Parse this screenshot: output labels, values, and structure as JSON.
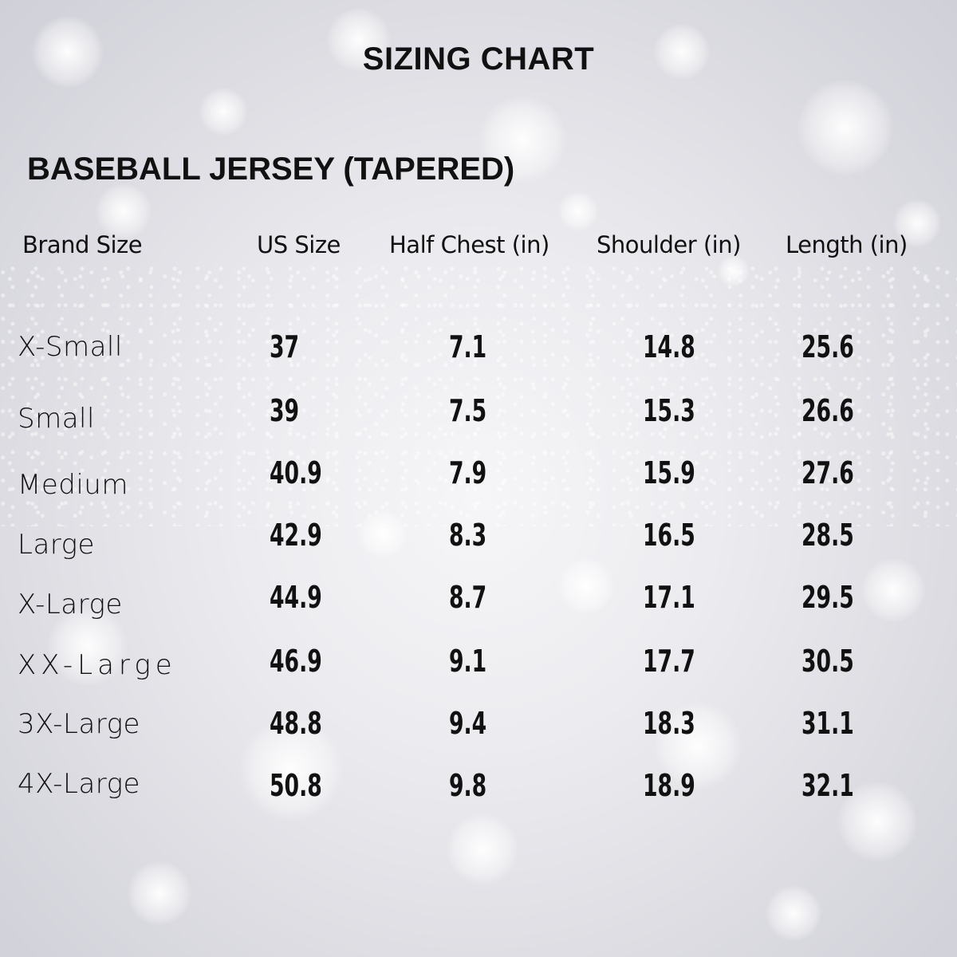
{
  "title": "SIZING CHART",
  "subtitle": "BASEBALL JERSEY (TAPERED)",
  "columns": [
    "Brand Size",
    "US Size",
    "Half Chest (in)",
    "Shoulder (in)",
    "Length (in)"
  ],
  "rows": [
    {
      "brand": "X-Small",
      "us": "37",
      "chest": "7.1",
      "shoulder": "14.8",
      "length": "25.6"
    },
    {
      "brand": "Small",
      "us": "39",
      "chest": "7.5",
      "shoulder": "15.3",
      "length": "26.6"
    },
    {
      "brand": "Medium",
      "us": "40.9",
      "chest": "7.9",
      "shoulder": "15.9",
      "length": "27.6"
    },
    {
      "brand": "Large",
      "us": "42.9",
      "chest": "8.3",
      "shoulder": "16.5",
      "length": "28.5"
    },
    {
      "brand": "X-Large",
      "us": "44.9",
      "chest": "8.7",
      "shoulder": "17.1",
      "length": "29.5"
    },
    {
      "brand": "XX-Large",
      "us": "46.9",
      "chest": "9.1",
      "shoulder": "17.7",
      "length": "30.5"
    },
    {
      "brand": "3X-Large",
      "us": "48.8",
      "chest": "9.4",
      "shoulder": "18.3",
      "length": "31.1"
    },
    {
      "brand": "4X-Large",
      "us": "50.8",
      "chest": "9.8",
      "shoulder": "18.9",
      "length": "32.1"
    }
  ]
}
